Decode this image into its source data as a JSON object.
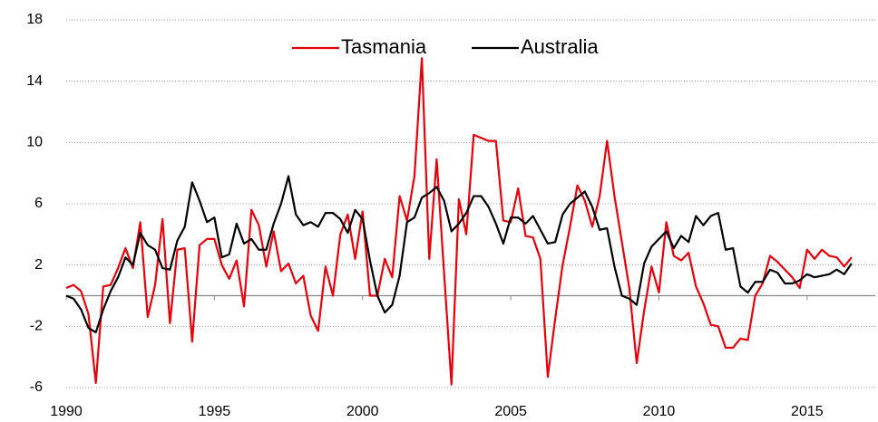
{
  "chart_data": {
    "type": "line",
    "x": [
      1990,
      1990.25,
      1990.5,
      1990.75,
      1991,
      1991.25,
      1991.5,
      1991.75,
      1992,
      1992.25,
      1992.5,
      1992.75,
      1993,
      1993.25,
      1993.5,
      1993.75,
      1994,
      1994.25,
      1994.5,
      1994.75,
      1995,
      1995.25,
      1995.5,
      1995.75,
      1996,
      1996.25,
      1996.5,
      1996.75,
      1997,
      1997.25,
      1997.5,
      1997.75,
      1998,
      1998.25,
      1998.5,
      1998.75,
      1999,
      1999.25,
      1999.5,
      1999.75,
      2000,
      2000.25,
      2000.5,
      2000.75,
      2001,
      2001.25,
      2001.5,
      2001.75,
      2002,
      2002.25,
      2002.5,
      2002.75,
      2003,
      2003.25,
      2003.5,
      2003.75,
      2004,
      2004.25,
      2004.5,
      2004.75,
      2005,
      2005.25,
      2005.5,
      2005.75,
      2006,
      2006.25,
      2006.5,
      2006.75,
      2007,
      2007.25,
      2007.5,
      2007.75,
      2008,
      2008.25,
      2008.5,
      2008.75,
      2009,
      2009.25,
      2009.5,
      2009.75,
      2010,
      2010.25,
      2010.5,
      2010.75,
      2011,
      2011.25,
      2011.5,
      2011.75,
      2012,
      2012.25,
      2012.5,
      2012.75,
      2013,
      2013.25,
      2013.5,
      2013.75,
      2014,
      2014.25,
      2014.5,
      2014.75,
      2015,
      2015.25,
      2015.5,
      2015.75,
      2016,
      2016.25,
      2016.5
    ],
    "series": [
      {
        "name": "Tasmania",
        "color": "#e8000b",
        "values": [
          0.5,
          0.7,
          0.3,
          -1.2,
          -5.7,
          0.6,
          0.7,
          1.8,
          3.1,
          1.8,
          4.8,
          -1.4,
          0.7,
          5.0,
          -1.8,
          3.0,
          3.1,
          -3.0,
          3.3,
          3.7,
          3.7,
          2.0,
          1.1,
          2.3,
          -0.7,
          5.6,
          4.6,
          1.9,
          4.2,
          1.6,
          2.1,
          0.8,
          1.3,
          -1.3,
          -2.3,
          1.9,
          0.0,
          4.0,
          5.3,
          2.4,
          5.5,
          0.0,
          0.0,
          2.4,
          1.2,
          6.5,
          4.9,
          7.8,
          15.5,
          2.4,
          8.9,
          1.5,
          -5.8,
          6.3,
          4.0,
          10.5,
          10.3,
          10.1,
          10.1,
          4.9,
          4.8,
          7.0,
          3.9,
          3.8,
          2.4,
          -5.3,
          -1.5,
          2.0,
          4.5,
          7.2,
          6.2,
          4.5,
          6.5,
          10.1,
          6.5,
          3.5,
          0.5,
          -4.4,
          -1.0,
          1.9,
          0.2,
          4.8,
          2.6,
          2.3,
          2.8,
          0.6,
          -0.5,
          -1.9,
          -2.0,
          -3.4,
          -3.4,
          -2.8,
          -2.9,
          0.0,
          0.8,
          2.6,
          2.2,
          1.7,
          1.2,
          0.5,
          3.0,
          2.4,
          3.0,
          2.6,
          2.5,
          1.9,
          2.5
        ]
      },
      {
        "name": "Australia",
        "color": "#000000",
        "values": [
          0.0,
          -0.2,
          -0.9,
          -2.1,
          -2.4,
          -0.9,
          0.3,
          1.2,
          2.5,
          2.0,
          4.1,
          3.3,
          3.0,
          1.8,
          1.7,
          3.6,
          4.5,
          7.4,
          6.2,
          4.8,
          5.1,
          2.5,
          2.7,
          4.7,
          3.4,
          3.7,
          3.0,
          3.0,
          4.7,
          6.0,
          7.8,
          5.3,
          4.6,
          4.8,
          4.5,
          5.4,
          5.4,
          5.0,
          4.1,
          5.6,
          5.0,
          2.3,
          0.0,
          -1.1,
          -0.6,
          1.3,
          4.8,
          5.1,
          6.4,
          6.7,
          7.1,
          6.2,
          4.2,
          4.7,
          5.4,
          6.5,
          6.5,
          5.8,
          4.7,
          3.4,
          5.1,
          5.1,
          4.7,
          5.2,
          4.3,
          3.4,
          3.5,
          5.3,
          6.0,
          6.4,
          6.8,
          5.8,
          4.3,
          4.4,
          1.9,
          0.0,
          -0.2,
          -0.6,
          2.1,
          3.2,
          3.7,
          4.2,
          3.1,
          3.9,
          3.5,
          5.2,
          4.6,
          5.2,
          5.4,
          3.0,
          3.1,
          0.6,
          0.2,
          0.9,
          0.9,
          1.7,
          1.5,
          0.8,
          0.8,
          1.0,
          1.4,
          1.2,
          1.3,
          1.4,
          1.7,
          1.4,
          2.1
        ]
      }
    ],
    "xlim": [
      1990,
      2017.3
    ],
    "xticks": [
      1990,
      1995,
      2000,
      2005,
      2010,
      2015
    ],
    "ylim": [
      -6,
      18
    ],
    "yticks": [
      -6,
      -2,
      2,
      6,
      10,
      14,
      18
    ],
    "grid": true,
    "legend": "top"
  }
}
